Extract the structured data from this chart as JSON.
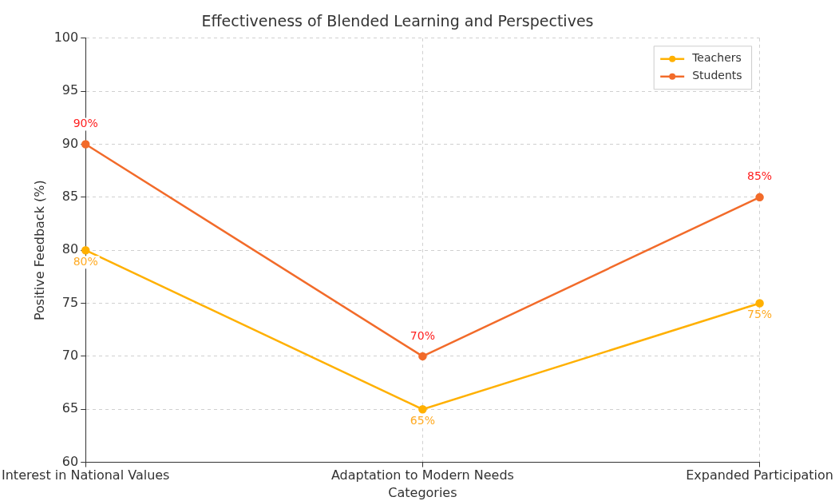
{
  "chart_data": {
    "type": "line",
    "title": "Effectiveness of Blended Learning and Perspectives",
    "xlabel": "Categories",
    "ylabel": "Positive Feedback (%)",
    "categories": [
      "Interest in National Values",
      "Adaptation to Modern Needs",
      "Expanded Participation"
    ],
    "series": [
      {
        "name": "Teachers",
        "color": "#ffb000",
        "values": [
          80,
          65,
          75
        ],
        "value_labels": [
          "80%",
          "65%",
          "75%"
        ]
      },
      {
        "name": "Students",
        "color": "#f26b2a",
        "values": [
          90,
          70,
          85
        ],
        "value_labels": [
          "90%",
          "70%",
          "85%"
        ]
      }
    ],
    "ylim": [
      60,
      100
    ],
    "yticks": [
      60,
      65,
      70,
      75,
      80,
      85,
      90,
      95,
      100
    ],
    "grid": true,
    "legend": "top right",
    "marker": "circle",
    "line_style": "solid"
  }
}
